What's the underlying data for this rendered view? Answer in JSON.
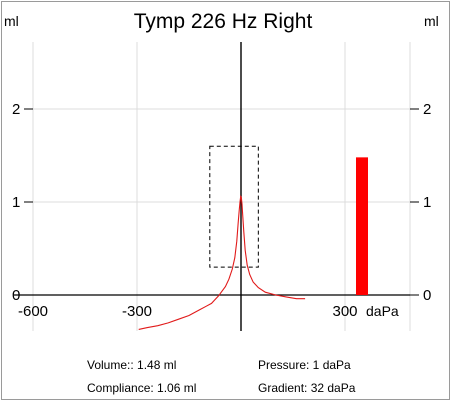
{
  "chart_data": {
    "type": "line",
    "title": "Tymp 226 Hz Right",
    "y_unit_left": "ml",
    "y_unit_right": "ml",
    "x_unit": "daPa",
    "xlim": [
      -600,
      400
    ],
    "ylim": [
      -0.4,
      2.7
    ],
    "x_ticks": [
      {
        "value": -600,
        "label": "-600"
      },
      {
        "value": -300,
        "label": "-300"
      },
      {
        "value": 300,
        "label": "300"
      }
    ],
    "y_ticks": [
      {
        "value": 0,
        "label": "0"
      },
      {
        "value": 1,
        "label": "1"
      },
      {
        "value": 2,
        "label": "2"
      }
    ],
    "series": [
      {
        "color": "#e11a1a",
        "x": [
          -295,
          -270,
          -240,
          -210,
          -180,
          -150,
          -120,
          -100,
          -85,
          -75,
          -65,
          -55,
          -45,
          -35,
          -25,
          -18,
          -12,
          -8,
          -5,
          -3,
          -1,
          1,
          3,
          5,
          8,
          12,
          18,
          25,
          35,
          50,
          70,
          100,
          130,
          160,
          185
        ],
        "y": [
          -0.37,
          -0.35,
          -0.33,
          -0.3,
          -0.26,
          -0.22,
          -0.16,
          -0.12,
          -0.09,
          -0.05,
          -0.01,
          0.04,
          0.09,
          0.17,
          0.28,
          0.4,
          0.58,
          0.78,
          0.92,
          1.0,
          1.06,
          1.05,
          0.98,
          0.86,
          0.68,
          0.48,
          0.32,
          0.22,
          0.14,
          0.08,
          0.03,
          0.0,
          -0.02,
          -0.04,
          -0.04
        ]
      }
    ],
    "normal_region": {
      "x": [
        -90,
        50
      ],
      "y": [
        0.3,
        1.6
      ]
    },
    "volume_bar": {
      "value": 1.48,
      "color": "#ff0000"
    },
    "peak_pressure_dapa": 1,
    "stats": {
      "volume": "Volume:: 1.48 ml",
      "pressure": "Pressure: 1 daPa",
      "compliance": "Compliance: 1.06 ml",
      "gradient": "Gradient: 32 daPa"
    }
  }
}
